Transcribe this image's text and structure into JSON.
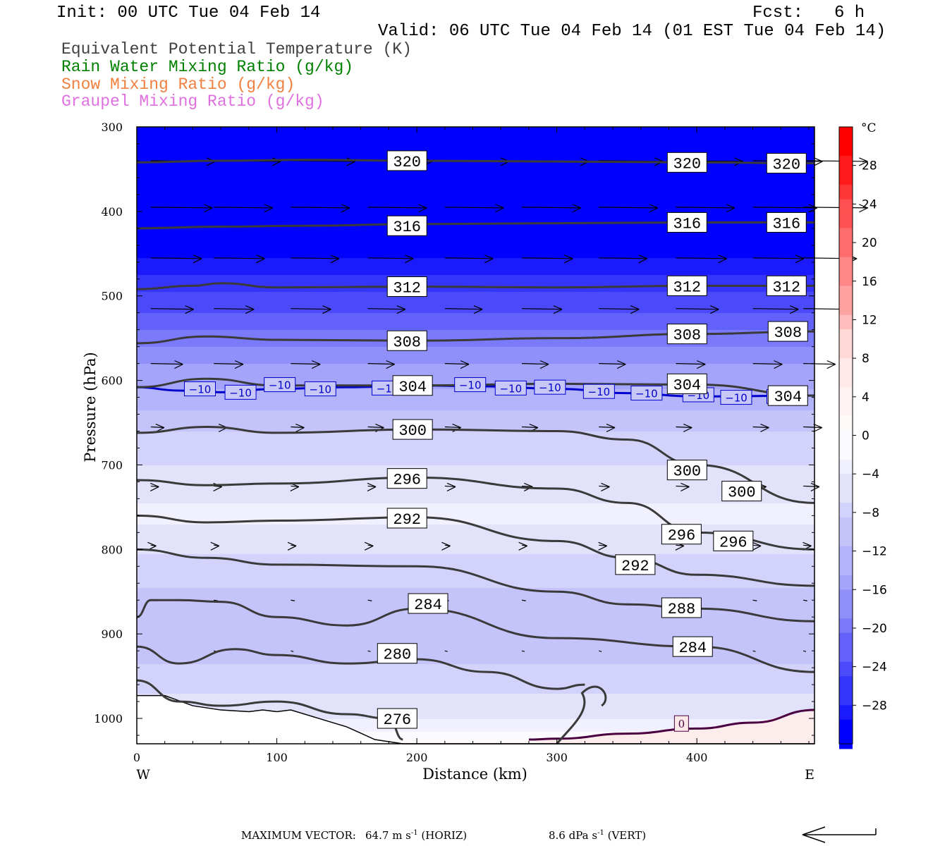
{
  "header": {
    "init": "Init: 00 UTC Tue 04 Feb 14",
    "fcst_label": "Fcst:",
    "fcst_value": "6 h",
    "valid": "Valid: 06 UTC Tue 04 Feb 14 (01 EST Tue 04 Feb 14)"
  },
  "legend": {
    "items": [
      {
        "text": "Equivalent Potential Temperature (K)",
        "color": "#404040"
      },
      {
        "text": "Rain Water Mixing Ratio (g/kg)",
        "color": "#008000"
      },
      {
        "text": "Snow Mixing Ratio (g/kg)",
        "color": "#f08040"
      },
      {
        "text": "Graupel Mixing Ratio (g/kg)",
        "color": "#e070e0"
      }
    ]
  },
  "footer": {
    "label": "MAXIMUM VECTOR:",
    "horiz_value": "64.7",
    "horiz_unit": "m s",
    "horiz_tag": "(HORIZ)",
    "vert_value": "8.6",
    "vert_unit": "dPa s",
    "vert_tag": "(VERT)",
    "exp": "-1"
  },
  "chart_data": {
    "type": "contour",
    "xlabel": "Distance (km)",
    "ylabel": "Pressure (hPa)",
    "x_ticks": [
      0,
      100,
      200,
      300,
      400
    ],
    "x_left_label": "W",
    "x_right_label": "E",
    "xlim": [
      0,
      484
    ],
    "y_ticks": [
      300,
      400,
      500,
      600,
      700,
      800,
      900,
      1000
    ],
    "ylim": [
      300,
      1030
    ],
    "colorbar": {
      "unit": "°C",
      "tick_labels": [
        "28",
        "24",
        "20",
        "16",
        "12",
        "8",
        "4",
        "0",
        "−4",
        "−8",
        "−12",
        "−16",
        "−20",
        "−24",
        "−28"
      ],
      "tick_values": [
        28,
        24,
        20,
        16,
        12,
        8,
        4,
        0,
        -4,
        -8,
        -12,
        -16,
        -20,
        -24,
        -28
      ],
      "range": [
        -32,
        32
      ],
      "colors_warm": [
        "#ff0000",
        "#ff1b1b",
        "#ff3636",
        "#ff5151",
        "#ff6c6c",
        "#ff8787",
        "#ffa2a2",
        "#ffbdbd",
        "#ffd8d8",
        "#ffe8e8",
        "#fff3f3",
        "#fffafa"
      ],
      "colors_cold": [
        "#fbfbff",
        "#f0f0ff",
        "#e2e2fb",
        "#d2d2fb",
        "#c4c4fb",
        "#b4b4fb",
        "#a4a4fb",
        "#9090fb",
        "#7a7afb",
        "#6262fb",
        "#4a4afb",
        "#3434fb",
        "#1a1afd",
        "#0000ff"
      ]
    },
    "temperature_field": [
      {
        "p": 300,
        "t": -50
      },
      {
        "p": 350,
        "t": -46
      },
      {
        "p": 400,
        "t": -38
      },
      {
        "p": 430,
        "t": -33
      },
      {
        "p": 470,
        "t": -28
      },
      {
        "p": 500,
        "t": -25
      },
      {
        "p": 540,
        "t": -21
      },
      {
        "p": 580,
        "t": -16
      },
      {
        "p": 620,
        "t": -13
      },
      {
        "p": 660,
        "t": -9
      },
      {
        "p": 700,
        "t": -7
      },
      {
        "p": 760,
        "t": -4
      },
      {
        "p": 820,
        "t": -8
      },
      {
        "p": 880,
        "t": -11
      },
      {
        "p": 940,
        "t": -9
      },
      {
        "p": 1000,
        "t": -5
      },
      {
        "p": 1030,
        "t": 1
      }
    ],
    "theta_e_contours": [
      {
        "value": 320,
        "x": [
          0,
          60,
          120,
          200,
          300,
          400,
          484
        ],
        "p": [
          342,
          340,
          339,
          340,
          341,
          342,
          343
        ],
        "labels": [
          [
            193,
            340
          ],
          [
            393,
            342
          ],
          [
            464,
            343
          ]
        ]
      },
      {
        "value": 316,
        "x": [
          0,
          60,
          120,
          200,
          300,
          400,
          484
        ],
        "p": [
          420,
          418,
          417,
          415,
          414,
          413,
          413
        ],
        "labels": [
          [
            193,
            417
          ],
          [
            393,
            413
          ],
          [
            464,
            413
          ]
        ]
      },
      {
        "value": 312,
        "x": [
          0,
          40,
          60,
          100,
          200,
          300,
          400,
          484
        ],
        "p": [
          492,
          488,
          485,
          490,
          489,
          490,
          488,
          488
        ],
        "labels": [
          [
            193,
            489
          ],
          [
            393,
            488
          ],
          [
            464,
            488
          ]
        ]
      },
      {
        "value": 308,
        "x": [
          0,
          50,
          100,
          200,
          300,
          400,
          484
        ],
        "p": [
          556,
          548,
          552,
          553,
          550,
          545,
          542
        ],
        "labels": [
          [
            193,
            553
          ],
          [
            393,
            545
          ],
          [
            465,
            542
          ]
        ]
      },
      {
        "value": 304,
        "x": [
          0,
          50,
          100,
          200,
          300,
          400,
          484
        ],
        "p": [
          608,
          598,
          606,
          606,
          604,
          605,
          618
        ],
        "labels": [
          [
            197,
            606
          ],
          [
            393,
            604
          ],
          [
            465,
            618
          ]
        ]
      },
      {
        "value": 300,
        "x": [
          0,
          50,
          100,
          200,
          300,
          350,
          400,
          484
        ],
        "p": [
          662,
          655,
          662,
          658,
          660,
          670,
          700,
          745
        ],
        "labels": [
          [
            197,
            658
          ],
          [
            393,
            706
          ],
          [
            432,
            731
          ]
        ]
      },
      {
        "value": 296,
        "x": [
          0,
          50,
          100,
          200,
          300,
          350,
          400,
          484
        ],
        "p": [
          718,
          724,
          722,
          715,
          728,
          745,
          780,
          800
        ],
        "labels": [
          [
            193,
            716
          ],
          [
            389,
            782
          ],
          [
            426,
            790
          ]
        ]
      },
      {
        "value": 292,
        "x": [
          0,
          50,
          100,
          200,
          300,
          350,
          400,
          484
        ],
        "p": [
          760,
          768,
          766,
          762,
          790,
          810,
          830,
          843
        ],
        "labels": [
          [
            193,
            763
          ],
          [
            356,
            818
          ]
        ]
      },
      {
        "value": 288,
        "x": [
          0,
          50,
          100,
          200,
          300,
          350,
          400,
          484
        ],
        "p": [
          800,
          810,
          818,
          820,
          850,
          865,
          870,
          885
        ],
        "labels": [
          [
            389,
            869
          ]
        ]
      },
      {
        "value": 284,
        "x": [
          0,
          10,
          30,
          60,
          100,
          150,
          200,
          300,
          400,
          484
        ],
        "p": [
          880,
          860,
          860,
          862,
          880,
          890,
          870,
          905,
          915,
          945
        ],
        "labels": [
          [
            208,
            864
          ],
          [
            397,
            915
          ]
        ]
      },
      {
        "value": 280,
        "x": [
          0,
          30,
          70,
          100,
          150,
          200,
          250,
          300,
          320
        ],
        "p": [
          915,
          935,
          918,
          925,
          935,
          930,
          945,
          965,
          960
        ],
        "labels": [
          [
            186,
            923
          ]
        ]
      },
      {
        "value": 276,
        "x": [
          0,
          30,
          60,
          100,
          150,
          180,
          190
        ],
        "p": [
          955,
          980,
          985,
          980,
          995,
          1000,
          1025
        ],
        "labels": [
          [
            186,
            1000
          ]
        ]
      }
    ],
    "minus10_isotherm": {
      "value": -10,
      "label_text": "−10",
      "x": [
        0,
        30,
        60,
        100,
        150,
        200,
        250,
        300,
        350,
        400,
        484
      ],
      "p": [
        608,
        612,
        614,
        610,
        608,
        606,
        607,
        610,
        615,
        619,
        618
      ],
      "labels": [
        [
          35,
          610
        ],
        [
          64,
          614
        ],
        [
          92,
          605
        ],
        [
          121,
          610
        ],
        [
          169,
          609
        ],
        [
          228,
          605
        ],
        [
          257,
          609
        ],
        [
          285,
          608
        ],
        [
          320,
          613
        ],
        [
          354,
          615
        ],
        [
          391,
          617
        ],
        [
          418,
          620
        ],
        [
          451,
          619
        ]
      ]
    },
    "zero_isotherm": {
      "value": 0,
      "label_text": "0",
      "x": [
        280,
        300,
        350,
        400,
        440,
        484
      ],
      "p": [
        1025,
        1024,
        1018,
        1012,
        1005,
        990
      ],
      "labels": [
        [
          389,
          1006
        ]
      ]
    },
    "terrain_p": [
      973,
      973,
      985,
      990,
      992,
      990,
      992,
      990,
      1000,
      1010,
      1025,
      1030,
      1030,
      1030
    ],
    "terrain_x": [
      0,
      20,
      40,
      60,
      80,
      90,
      100,
      110,
      130,
      150,
      170,
      190,
      220,
      484
    ],
    "wind_vectors": [
      {
        "row_p": 340,
        "u": [
          48,
          50,
          48,
          48,
          48,
          50,
          48,
          50,
          52,
          48
        ]
      },
      {
        "row_p": 395,
        "u": [
          46,
          44,
          44,
          44,
          44,
          44,
          44,
          44,
          48,
          48
        ]
      },
      {
        "row_p": 455,
        "u": [
          38,
          38,
          36,
          34,
          36,
          38,
          36,
          38,
          38,
          40
        ]
      },
      {
        "row_p": 515,
        "u": [
          32,
          30,
          30,
          28,
          28,
          30,
          30,
          32,
          34,
          34
        ]
      },
      {
        "row_p": 580,
        "u": [
          24,
          22,
          22,
          20,
          18,
          20,
          20,
          22,
          22,
          24
        ]
      },
      {
        "row_p": 655,
        "u": [
          10,
          10,
          10,
          12,
          12,
          12,
          12,
          12,
          12,
          14
        ]
      },
      {
        "row_p": 725,
        "u": [
          6,
          6,
          6,
          6,
          8,
          8,
          8,
          10,
          10,
          12
        ]
      },
      {
        "row_p": 795,
        "u": [
          4,
          4,
          4,
          4,
          4,
          4,
          6,
          6,
          6,
          6
        ]
      },
      {
        "row_p": 860,
        "u": [
          3,
          3,
          3,
          3,
          3,
          3,
          3,
          3,
          3,
          3
        ]
      },
      {
        "row_p": 920,
        "u": [
          2,
          2,
          2,
          2,
          2,
          2,
          2,
          2,
          2,
          2
        ]
      }
    ]
  }
}
